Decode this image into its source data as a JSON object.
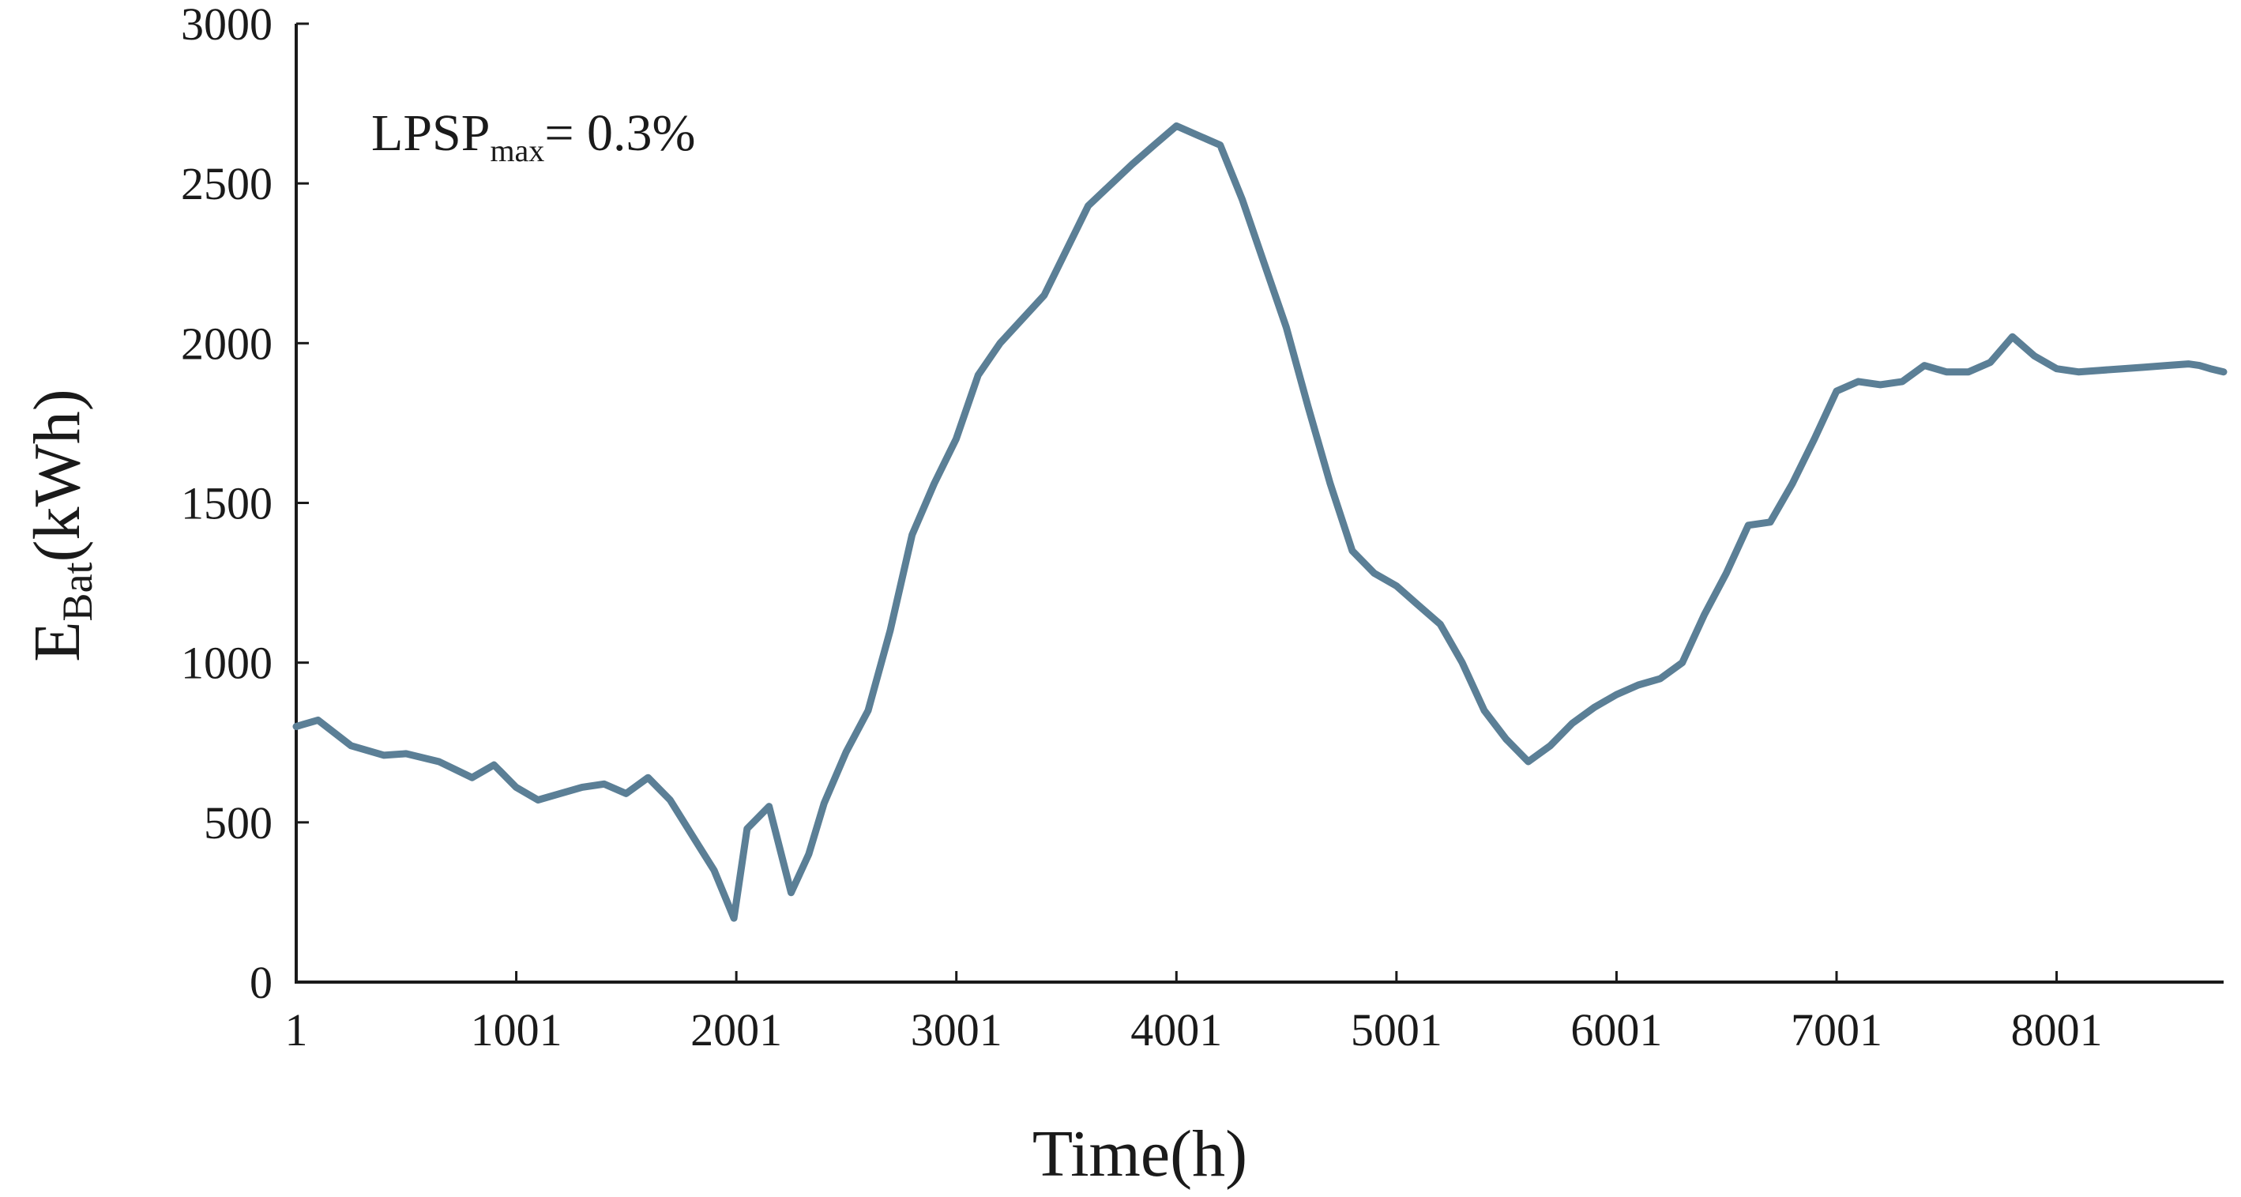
{
  "chart_data": {
    "type": "line",
    "title": "",
    "annotation": {
      "main": "LPSP",
      "sub": "max",
      "rest": "= 0.3%"
    },
    "xlabel": "Time(h)",
    "ylabel": {
      "main": "E",
      "sub": "Bat",
      "rest": "(kWh)"
    },
    "xlim": [
      1,
      8760
    ],
    "ylim": [
      0,
      3000
    ],
    "xticks": [
      1,
      1001,
      2001,
      3001,
      4001,
      5001,
      6001,
      7001,
      8001
    ],
    "xtick_labels": [
      "1",
      "1001",
      "2001",
      "3001",
      "4001",
      "5001",
      "6001",
      "7001",
      "8001"
    ],
    "yticks": [
      0,
      500,
      1000,
      1500,
      2000,
      2500,
      3000
    ],
    "ytick_labels": [
      "0",
      "500",
      "1000",
      "1500",
      "2000",
      "2500",
      "3000"
    ],
    "grid": false,
    "legend": "none",
    "series_color": "#5b7f96",
    "series": [
      {
        "x": [
          1,
          100,
          250,
          400,
          500,
          650,
          800,
          900,
          1000,
          1100,
          1200,
          1300,
          1400,
          1500,
          1600,
          1700,
          1800,
          1900,
          1990,
          2050,
          2150,
          2250,
          2330,
          2400,
          2500,
          2600,
          2700,
          2800,
          2900,
          3000,
          3100,
          3200,
          3400,
          3600,
          3800,
          3900,
          4001,
          4100,
          4200,
          4300,
          4400,
          4500,
          4600,
          4700,
          4800,
          4900,
          5001,
          5100,
          5200,
          5300,
          5400,
          5500,
          5600,
          5700,
          5800,
          5900,
          6001,
          6100,
          6200,
          6300,
          6400,
          6500,
          6600,
          6700,
          6800,
          6900,
          7001,
          7100,
          7200,
          7300,
          7400,
          7500,
          7600,
          7700,
          7800,
          7900,
          8001,
          8100,
          8200,
          8300,
          8400,
          8500,
          8600,
          8650,
          8700,
          8760
        ],
        "y": [
          800,
          820,
          740,
          710,
          715,
          690,
          640,
          680,
          610,
          570,
          590,
          610,
          620,
          590,
          640,
          570,
          460,
          350,
          200,
          480,
          550,
          280,
          400,
          560,
          720,
          850,
          1100,
          1400,
          1560,
          1700,
          1900,
          2000,
          2150,
          2430,
          2560,
          2620,
          2680,
          2650,
          2620,
          2450,
          2250,
          2050,
          1800,
          1560,
          1350,
          1280,
          1240,
          1180,
          1120,
          1000,
          850,
          760,
          690,
          740,
          810,
          860,
          900,
          930,
          950,
          1000,
          1150,
          1280,
          1430,
          1440,
          1560,
          1700,
          1850,
          1880,
          1870,
          1880,
          1930,
          1910,
          1910,
          1940,
          2020,
          1960,
          1920,
          1910,
          1915,
          1920,
          1925,
          1930,
          1935,
          1930,
          1920,
          1910
        ]
      }
    ]
  }
}
